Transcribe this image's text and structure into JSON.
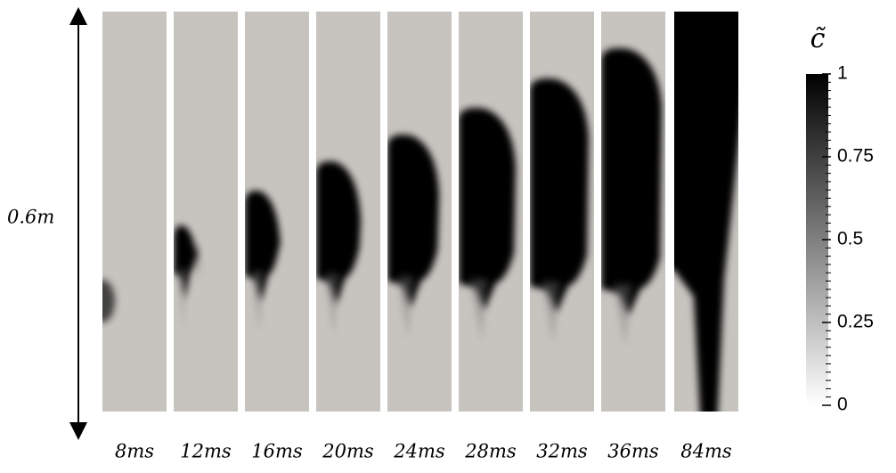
{
  "scale_label": "0.6m",
  "panels": [
    {
      "label": "8ms"
    },
    {
      "label": "12ms"
    },
    {
      "label": "16ms"
    },
    {
      "label": "20ms"
    },
    {
      "label": "24ms"
    },
    {
      "label": "28ms"
    },
    {
      "label": "32ms"
    },
    {
      "label": "36ms"
    },
    {
      "label": "84ms"
    }
  ],
  "colorbar": {
    "title": "c̃",
    "ticks": [
      0,
      0.25,
      0.5,
      0.75,
      1
    ]
  }
}
